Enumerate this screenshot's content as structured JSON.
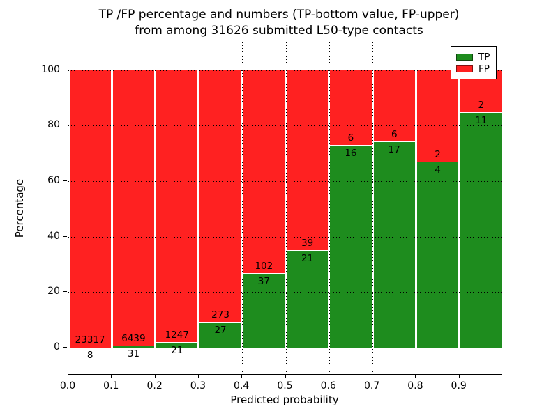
{
  "figure": {
    "title_line1": "TP /FP percentage and numbers (TP-bottom value, FP-upper)",
    "title_line2": "from among 31626 submitted L50-type contacts",
    "xlabel": "Predicted probability",
    "ylabel": "Percentage"
  },
  "legend": {
    "items": [
      {
        "label": "TP",
        "color_key": "tp"
      },
      {
        "label": "FP",
        "color_key": "fp"
      }
    ]
  },
  "chart_data": {
    "type": "bar",
    "stacked": true,
    "normalized_to_percent": true,
    "title": "TP /FP percentage and numbers (TP-bottom value, FP-upper) from among 31626 submitted L50-type contacts",
    "xlabel": "Predicted probability",
    "ylabel": "Percentage",
    "xlim": [
      0.0,
      1.0
    ],
    "ylim": [
      -10,
      110
    ],
    "grid": true,
    "grid_style": "dotted",
    "legend_position": "upper right",
    "xticks": [
      "0.0",
      "0.1",
      "0.2",
      "0.3",
      "0.4",
      "0.5",
      "0.6",
      "0.7",
      "0.8",
      "0.9"
    ],
    "yticks": [
      0,
      20,
      40,
      60,
      80,
      100
    ],
    "bin_edges": [
      0.0,
      0.1,
      0.2,
      0.3,
      0.4,
      0.5,
      0.6,
      0.7,
      0.8,
      0.9,
      1.0
    ],
    "total_contacts": 31626,
    "series_order": [
      "TP",
      "FP"
    ],
    "colors": {
      "tp": "#1e8c1e",
      "fp": "#ff2121",
      "bar_edge": "#ffffff"
    },
    "bins": [
      {
        "range": "0.0-0.1",
        "tp": 8,
        "fp": 23317,
        "tp_pct": 0.03,
        "fp_pct": 99.97
      },
      {
        "range": "0.1-0.2",
        "tp": 31,
        "fp": 6439,
        "tp_pct": 0.48,
        "fp_pct": 99.52
      },
      {
        "range": "0.2-0.3",
        "tp": 21,
        "fp": 1247,
        "tp_pct": 1.66,
        "fp_pct": 98.34
      },
      {
        "range": "0.3-0.4",
        "tp": 27,
        "fp": 273,
        "tp_pct": 9.0,
        "fp_pct": 91.0
      },
      {
        "range": "0.4-0.5",
        "tp": 37,
        "fp": 102,
        "tp_pct": 26.62,
        "fp_pct": 73.38
      },
      {
        "range": "0.5-0.6",
        "tp": 21,
        "fp": 39,
        "tp_pct": 35.0,
        "fp_pct": 65.0
      },
      {
        "range": "0.6-0.7",
        "tp": 16,
        "fp": 6,
        "tp_pct": 72.73,
        "fp_pct": 27.27
      },
      {
        "range": "0.7-0.8",
        "tp": 17,
        "fp": 6,
        "tp_pct": 73.91,
        "fp_pct": 26.09
      },
      {
        "range": "0.8-0.9",
        "tp": 4,
        "fp": 2,
        "tp_pct": 66.67,
        "fp_pct": 33.33
      },
      {
        "range": "0.9-1.0",
        "tp": 11,
        "fp": 2,
        "tp_pct": 84.62,
        "fp_pct": 15.38
      }
    ]
  }
}
